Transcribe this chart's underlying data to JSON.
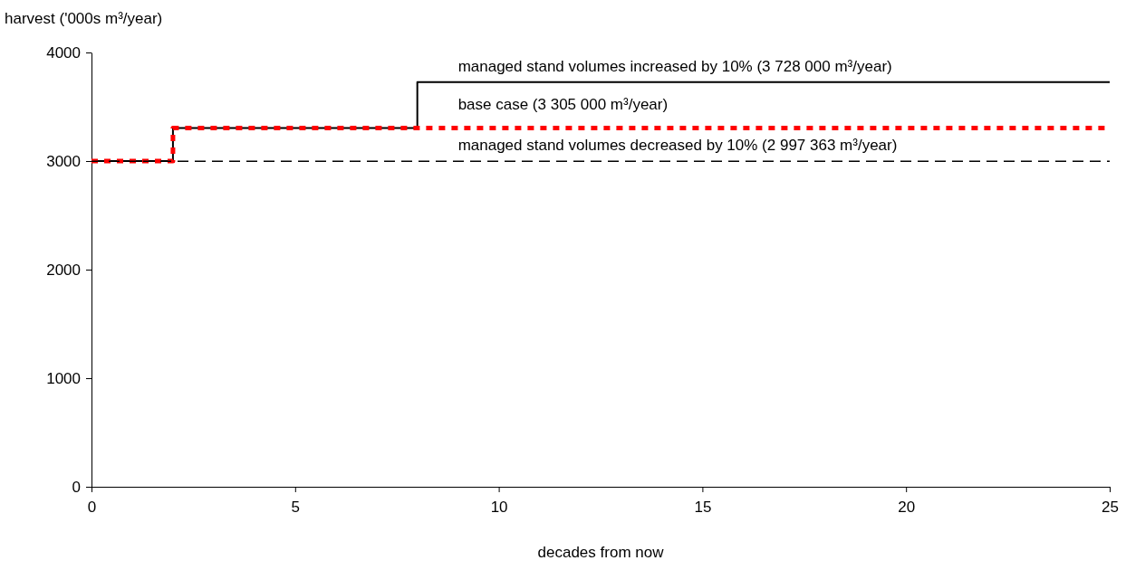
{
  "chart_data": {
    "type": "step",
    "xlabel": "decades from now",
    "ylabel": "harvest ('000s m³/year)",
    "xlim": [
      0,
      25
    ],
    "xticks": [
      0,
      5,
      10,
      15,
      20,
      25
    ],
    "ylim": [
      0,
      4000
    ],
    "yticks": [
      0,
      1000,
      2000,
      3000,
      4000
    ],
    "grid": false,
    "series": [
      {
        "name": "managed stand volumes increased by 10% (3 728 000 m³/year)",
        "color": "#000000",
        "line_style": "solid",
        "x": [
          0,
          2,
          8,
          25
        ],
        "values": [
          3000,
          3305,
          3728,
          3728
        ]
      },
      {
        "name": "base case (3 305 000 m³/year)",
        "color": "#ff0000",
        "line_style": "dotted",
        "x": [
          0,
          2,
          25
        ],
        "values": [
          3000,
          3305,
          3305
        ]
      },
      {
        "name": "managed stand volumes decreased by 10% (2 997 363 m³/year)",
        "color": "#000000",
        "line_style": "dashed",
        "x": [
          0,
          25
        ],
        "values": [
          2997,
          2997
        ]
      }
    ]
  }
}
